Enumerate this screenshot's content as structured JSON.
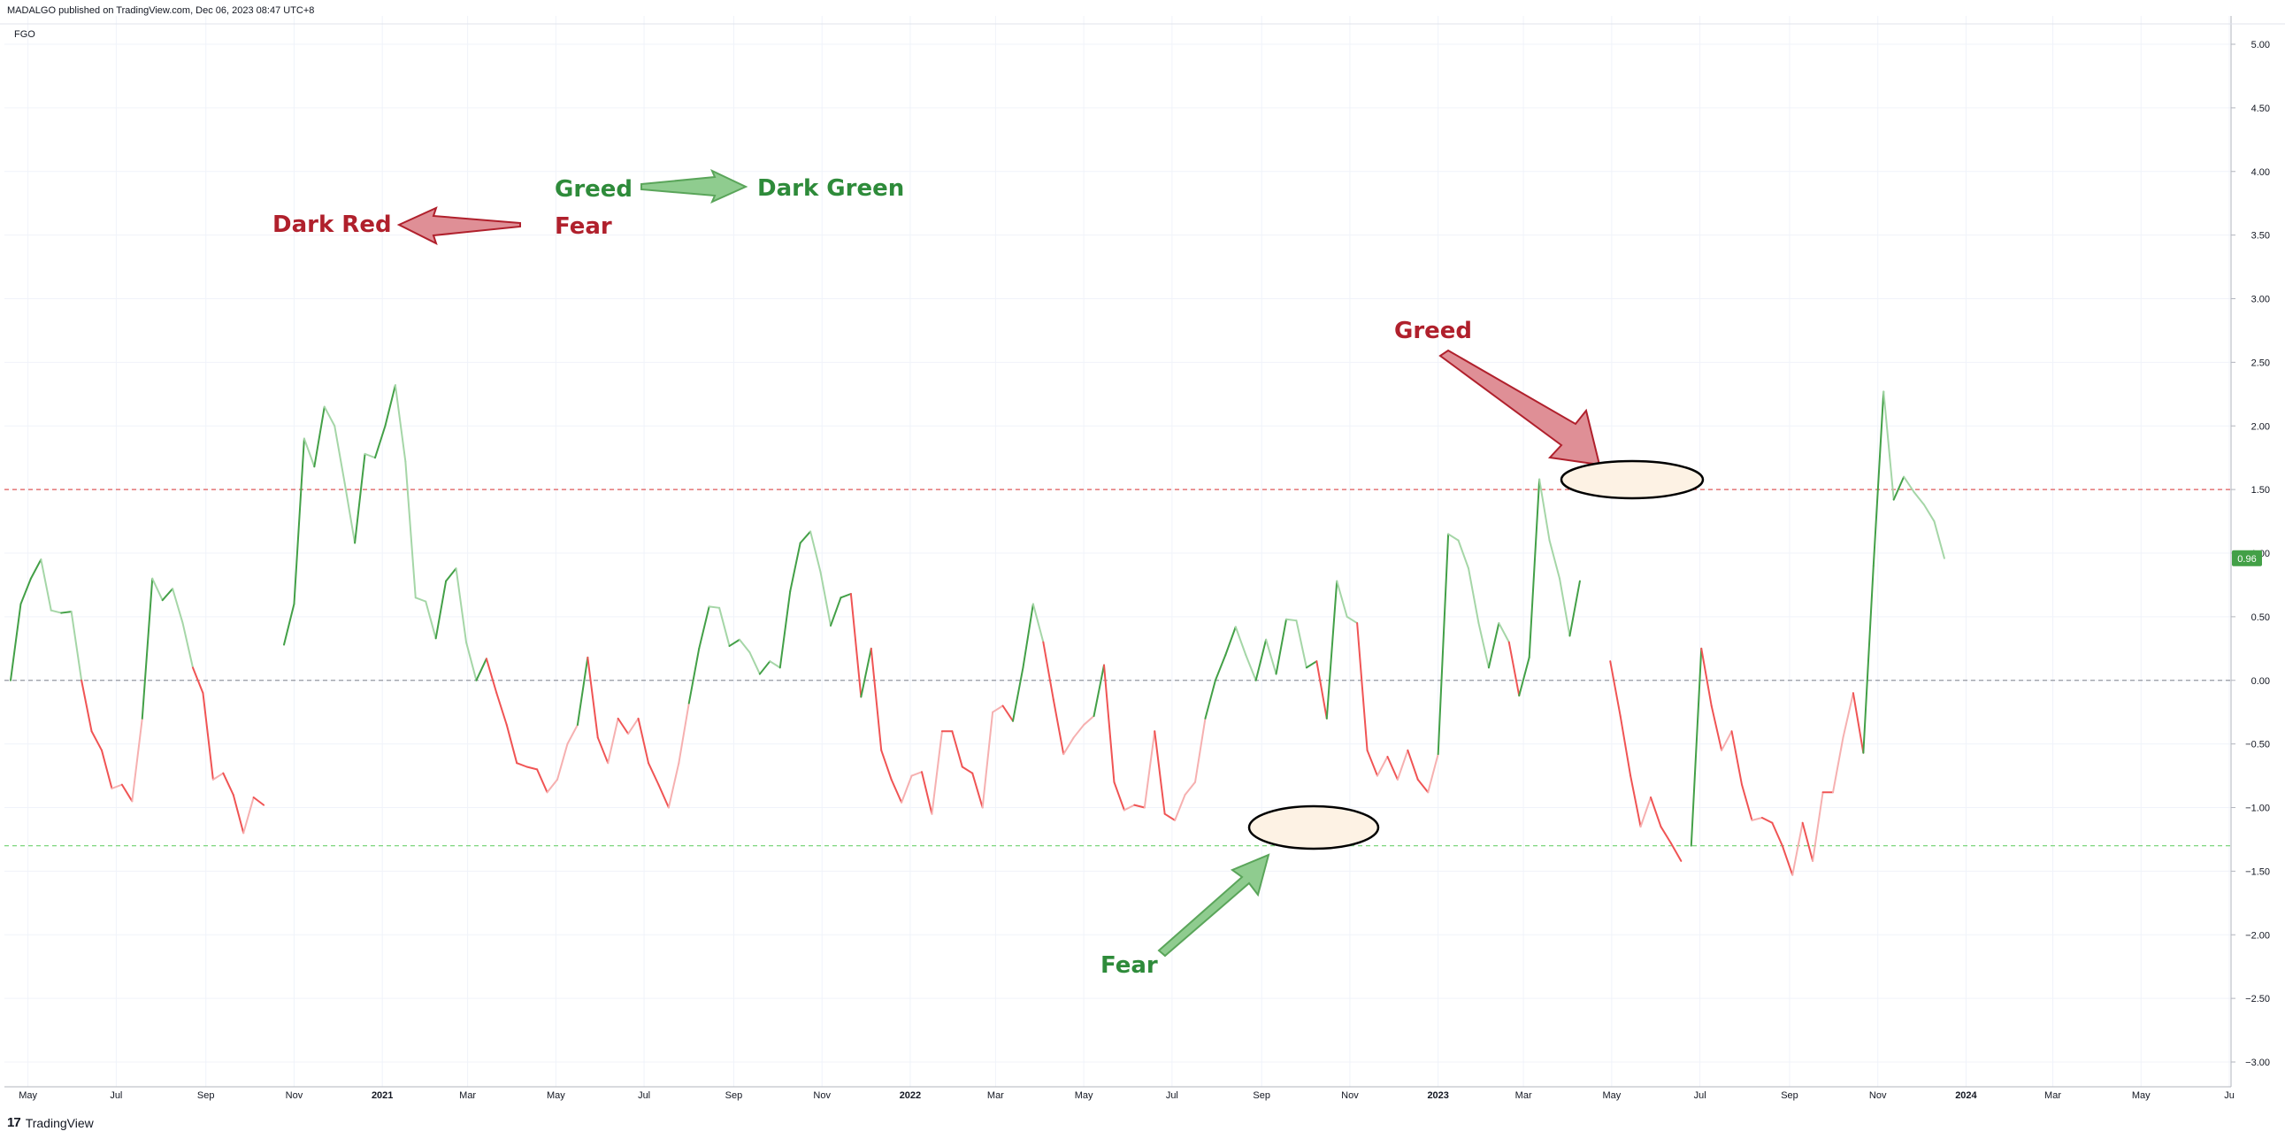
{
  "header": {
    "published_text": "MADALGO published on TradingView.com, Dec 06, 2023 08:47 UTC+8",
    "indicator_name": "FGO"
  },
  "footer": {
    "logo_glyph": "17",
    "brand": "TradingView"
  },
  "colors": {
    "dark_green": "#43a047",
    "light_green": "#a5d6a7",
    "dark_red": "#f05454",
    "light_red": "#f6b0b0",
    "annotation_green": "#2e8b3a",
    "annotation_red": "#b0202c",
    "upper_line": "#e05a5a",
    "lower_line": "#7dd67d",
    "zero_line": "#9598a1",
    "grid": "#f0f3fa",
    "last_value_bg": "#43a047"
  },
  "chart_data": {
    "type": "line",
    "title": "FGO",
    "ylim": [
      -3.25,
      5.15
    ],
    "y_ticks": [
      5.0,
      4.5,
      4.0,
      3.5,
      3.0,
      2.5,
      2.0,
      1.5,
      1.0,
      0.5,
      0.0,
      -0.5,
      -1.0,
      -1.5,
      -2.0,
      -2.5,
      -3.0
    ],
    "y_tick_labels": [
      "5.00",
      "4.50",
      "4.00",
      "3.50",
      "3.00",
      "2.50",
      "2.00",
      "1.50",
      "1.00",
      "0.50",
      "0.00",
      "−0.50",
      "−1.00",
      "−1.50",
      "−2.00",
      "−2.50",
      "−3.00"
    ],
    "x_ticks": [
      {
        "label": "May",
        "date": "2020-05-01"
      },
      {
        "label": "Jul",
        "date": "2020-07-01"
      },
      {
        "label": "Sep",
        "date": "2020-09-01"
      },
      {
        "label": "Nov",
        "date": "2020-11-01"
      },
      {
        "label": "2021",
        "date": "2021-01-01",
        "bold": true
      },
      {
        "label": "Mar",
        "date": "2021-03-01"
      },
      {
        "label": "May",
        "date": "2021-05-01"
      },
      {
        "label": "Jul",
        "date": "2021-07-01"
      },
      {
        "label": "Sep",
        "date": "2021-09-01"
      },
      {
        "label": "Nov",
        "date": "2021-11-01"
      },
      {
        "label": "2022",
        "date": "2022-01-01",
        "bold": true
      },
      {
        "label": "Mar",
        "date": "2022-03-01"
      },
      {
        "label": "May",
        "date": "2022-05-01"
      },
      {
        "label": "Jul",
        "date": "2022-07-01"
      },
      {
        "label": "Sep",
        "date": "2022-09-01"
      },
      {
        "label": "Nov",
        "date": "2022-11-01"
      },
      {
        "label": "2023",
        "date": "2023-01-01",
        "bold": true
      },
      {
        "label": "Mar",
        "date": "2023-03-01"
      },
      {
        "label": "May",
        "date": "2023-05-01"
      },
      {
        "label": "Jul",
        "date": "2023-07-01"
      },
      {
        "label": "Sep",
        "date": "2023-09-01"
      },
      {
        "label": "Nov",
        "date": "2023-11-01"
      },
      {
        "label": "2024",
        "date": "2024-01-01",
        "bold": true
      },
      {
        "label": "Mar",
        "date": "2024-03-01"
      },
      {
        "label": "May",
        "date": "2024-05-01"
      },
      {
        "label": "Ju",
        "date": "2024-07-01"
      }
    ],
    "x_range": [
      "2020-04-19",
      "2024-07-01"
    ],
    "reference_lines": [
      {
        "y": 1.5,
        "style": "dashed",
        "color_key": "upper_line"
      },
      {
        "y": 0.0,
        "style": "dashed",
        "color_key": "zero_line"
      },
      {
        "y": -1.3,
        "style": "dashed",
        "color_key": "lower_line"
      }
    ],
    "last_value": 0.96,
    "last_value_label": "0.96",
    "series": [
      {
        "points": [
          [
            "2020-04-19",
            0.0
          ],
          [
            "2020-04-26",
            0.6
          ],
          [
            "2020-05-03",
            0.8
          ],
          [
            "2020-05-10",
            0.95
          ],
          [
            "2020-05-17",
            0.55
          ],
          [
            "2020-05-24",
            0.53
          ],
          [
            "2020-05-31",
            0.54
          ],
          [
            "2020-06-07",
            0.0
          ],
          [
            "2020-06-14",
            -0.4
          ],
          [
            "2020-06-21",
            -0.55
          ],
          [
            "2020-06-28",
            -0.85
          ],
          [
            "2020-07-05",
            -0.82
          ],
          [
            "2020-07-12",
            -0.95
          ],
          [
            "2020-07-19",
            -0.3
          ],
          [
            "2020-07-26",
            0.8
          ],
          [
            "2020-08-02",
            0.63
          ],
          [
            "2020-08-09",
            0.72
          ],
          [
            "2020-08-16",
            0.45
          ],
          [
            "2020-08-23",
            0.1
          ],
          [
            "2020-08-30",
            -0.1
          ],
          [
            "2020-09-06",
            -0.78
          ],
          [
            "2020-09-13",
            -0.73
          ],
          [
            "2020-09-20",
            -0.9
          ],
          [
            "2020-09-27",
            -1.2
          ],
          [
            "2020-10-04",
            -0.92
          ],
          [
            "2020-10-11",
            -0.98
          ],
          [
            "2020-10-25",
            0.28
          ],
          [
            "2020-11-01",
            0.6
          ],
          [
            "2020-11-08",
            1.9
          ],
          [
            "2020-11-15",
            1.68
          ],
          [
            "2020-11-22",
            2.15
          ],
          [
            "2020-11-29",
            2.0
          ],
          [
            "2020-12-06",
            1.55
          ],
          [
            "2020-12-13",
            1.08
          ],
          [
            "2020-12-20",
            1.78
          ],
          [
            "2020-12-27",
            1.75
          ],
          [
            "2021-01-03",
            2.0
          ],
          [
            "2021-01-10",
            2.32
          ],
          [
            "2021-01-17",
            1.72
          ],
          [
            "2021-01-24",
            0.65
          ],
          [
            "2021-01-31",
            0.62
          ],
          [
            "2021-02-07",
            0.33
          ],
          [
            "2021-02-14",
            0.78
          ],
          [
            "2021-02-21",
            0.88
          ],
          [
            "2021-02-28",
            0.3
          ],
          [
            "2021-03-07",
            0.0
          ],
          [
            "2021-03-14",
            0.17
          ],
          [
            "2021-03-21",
            -0.1
          ],
          [
            "2021-03-28",
            -0.35
          ],
          [
            "2021-04-04",
            -0.65
          ],
          [
            "2021-04-11",
            -0.68
          ],
          [
            "2021-04-18",
            -0.7
          ],
          [
            "2021-04-25",
            -0.88
          ],
          [
            "2021-05-02",
            -0.78
          ],
          [
            "2021-05-09",
            -0.5
          ],
          [
            "2021-05-16",
            -0.35
          ],
          [
            "2021-05-23",
            0.18
          ],
          [
            "2021-05-30",
            -0.45
          ],
          [
            "2021-06-06",
            -0.65
          ],
          [
            "2021-06-13",
            -0.3
          ],
          [
            "2021-06-20",
            -0.42
          ],
          [
            "2021-06-27",
            -0.3
          ],
          [
            "2021-07-04",
            -0.65
          ],
          [
            "2021-07-11",
            -0.82
          ],
          [
            "2021-07-18",
            -1.0
          ],
          [
            "2021-07-25",
            -0.65
          ],
          [
            "2021-08-01",
            -0.18
          ],
          [
            "2021-08-08",
            0.25
          ],
          [
            "2021-08-15",
            0.58
          ],
          [
            "2021-08-22",
            0.57
          ],
          [
            "2021-08-29",
            0.27
          ],
          [
            "2021-09-05",
            0.32
          ],
          [
            "2021-09-12",
            0.22
          ],
          [
            "2021-09-19",
            0.05
          ],
          [
            "2021-09-26",
            0.15
          ],
          [
            "2021-10-03",
            0.1
          ],
          [
            "2021-10-10",
            0.7
          ],
          [
            "2021-10-17",
            1.08
          ],
          [
            "2021-10-24",
            1.17
          ],
          [
            "2021-10-31",
            0.85
          ],
          [
            "2021-11-07",
            0.43
          ],
          [
            "2021-11-14",
            0.65
          ],
          [
            "2021-11-21",
            0.68
          ],
          [
            "2021-11-28",
            -0.13
          ],
          [
            "2021-12-05",
            0.25
          ],
          [
            "2021-12-12",
            -0.55
          ],
          [
            "2021-12-19",
            -0.78
          ],
          [
            "2021-12-26",
            -0.96
          ],
          [
            "2022-01-02",
            -0.75
          ],
          [
            "2022-01-09",
            -0.72
          ],
          [
            "2022-01-16",
            -1.05
          ],
          [
            "2022-01-23",
            -0.4
          ],
          [
            "2022-01-30",
            -0.4
          ],
          [
            "2022-02-06",
            -0.68
          ],
          [
            "2022-02-13",
            -0.73
          ],
          [
            "2022-02-20",
            -1.0
          ],
          [
            "2022-02-27",
            -0.25
          ],
          [
            "2022-03-06",
            -0.2
          ],
          [
            "2022-03-13",
            -0.32
          ],
          [
            "2022-03-20",
            0.1
          ],
          [
            "2022-03-27",
            0.6
          ],
          [
            "2022-04-03",
            0.3
          ],
          [
            "2022-04-10",
            -0.15
          ],
          [
            "2022-04-17",
            -0.58
          ],
          [
            "2022-04-24",
            -0.45
          ],
          [
            "2022-05-01",
            -0.35
          ],
          [
            "2022-05-08",
            -0.28
          ],
          [
            "2022-05-15",
            0.12
          ],
          [
            "2022-05-22",
            -0.8
          ],
          [
            "2022-05-29",
            -1.02
          ],
          [
            "2022-06-05",
            -0.98
          ],
          [
            "2022-06-12",
            -1.0
          ],
          [
            "2022-06-19",
            -0.4
          ],
          [
            "2022-06-26",
            -1.05
          ],
          [
            "2022-07-03",
            -1.1
          ],
          [
            "2022-07-10",
            -0.9
          ],
          [
            "2022-07-17",
            -0.8
          ],
          [
            "2022-07-24",
            -0.3
          ],
          [
            "2022-07-31",
            0.0
          ],
          [
            "2022-08-07",
            0.2
          ],
          [
            "2022-08-14",
            0.42
          ],
          [
            "2022-08-21",
            0.2
          ],
          [
            "2022-08-28",
            0.0
          ],
          [
            "2022-09-04",
            0.32
          ],
          [
            "2022-09-11",
            0.05
          ],
          [
            "2022-09-18",
            0.48
          ],
          [
            "2022-09-25",
            0.47
          ],
          [
            "2022-10-02",
            0.1
          ],
          [
            "2022-10-09",
            0.15
          ],
          [
            "2022-10-16",
            -0.3
          ],
          [
            "2022-10-23",
            0.78
          ],
          [
            "2022-10-30",
            0.5
          ],
          [
            "2022-11-06",
            0.45
          ],
          [
            "2022-11-13",
            -0.55
          ],
          [
            "2022-11-20",
            -0.75
          ],
          [
            "2022-11-27",
            -0.6
          ],
          [
            "2022-12-04",
            -0.78
          ],
          [
            "2022-12-11",
            -0.55
          ],
          [
            "2022-12-18",
            -0.78
          ],
          [
            "2022-12-25",
            -0.88
          ],
          [
            "2023-01-01",
            -0.58
          ],
          [
            "2023-01-08",
            1.15
          ],
          [
            "2023-01-15",
            1.1
          ],
          [
            "2023-01-22",
            0.88
          ],
          [
            "2023-01-29",
            0.45
          ],
          [
            "2023-02-05",
            0.1
          ],
          [
            "2023-02-12",
            0.45
          ],
          [
            "2023-02-19",
            0.3
          ],
          [
            "2023-02-26",
            -0.12
          ],
          [
            "2023-03-05",
            0.18
          ],
          [
            "2023-03-12",
            1.58
          ],
          [
            "2023-03-19",
            1.1
          ],
          [
            "2023-03-26",
            0.8
          ],
          [
            "2023-04-02",
            0.35
          ],
          [
            "2023-04-09",
            0.78
          ],
          [
            "2023-04-30",
            0.15
          ],
          [
            "2023-05-07",
            -0.28
          ],
          [
            "2023-05-14",
            -0.75
          ],
          [
            "2023-05-21",
            -1.15
          ],
          [
            "2023-05-28",
            -0.92
          ],
          [
            "2023-06-04",
            -1.15
          ],
          [
            "2023-06-11",
            -1.28
          ],
          [
            "2023-06-18",
            -1.42
          ],
          [
            "2023-06-25",
            -1.3
          ],
          [
            "2023-07-02",
            0.25
          ],
          [
            "2023-07-09",
            -0.2
          ],
          [
            "2023-07-16",
            -0.55
          ],
          [
            "2023-07-23",
            -0.4
          ],
          [
            "2023-07-30",
            -0.82
          ],
          [
            "2023-08-06",
            -1.1
          ],
          [
            "2023-08-13",
            -1.08
          ],
          [
            "2023-08-20",
            -1.12
          ],
          [
            "2023-08-27",
            -1.3
          ],
          [
            "2023-09-03",
            -1.53
          ],
          [
            "2023-09-10",
            -1.12
          ],
          [
            "2023-09-17",
            -1.42
          ],
          [
            "2023-09-24",
            -0.88
          ],
          [
            "2023-10-01",
            -0.88
          ],
          [
            "2023-10-08",
            -0.45
          ],
          [
            "2023-10-15",
            -0.1
          ],
          [
            "2023-10-22",
            -0.57
          ],
          [
            "2023-10-29",
            0.9
          ],
          [
            "2023-11-05",
            2.27
          ],
          [
            "2023-11-12",
            1.42
          ],
          [
            "2023-11-19",
            1.6
          ],
          [
            "2023-11-26",
            1.48
          ],
          [
            "2023-12-03",
            1.38
          ],
          [
            "2023-12-10",
            1.25
          ],
          [
            "2023-12-17",
            0.96
          ]
        ],
        "breaks_after": [
          "2020-10-11",
          "2023-04-09",
          "2023-06-18"
        ]
      }
    ],
    "annotations": [
      {
        "text": "Greed",
        "color_key": "annotation_green"
      },
      {
        "text": "Dark Green",
        "color_key": "annotation_green"
      },
      {
        "text": "Dark Red",
        "color_key": "annotation_red"
      },
      {
        "text": "Fear",
        "color_key": "annotation_red"
      },
      {
        "text": "Greed",
        "color_key": "annotation_red"
      },
      {
        "text": "Fear",
        "color_key": "annotation_green"
      }
    ]
  }
}
